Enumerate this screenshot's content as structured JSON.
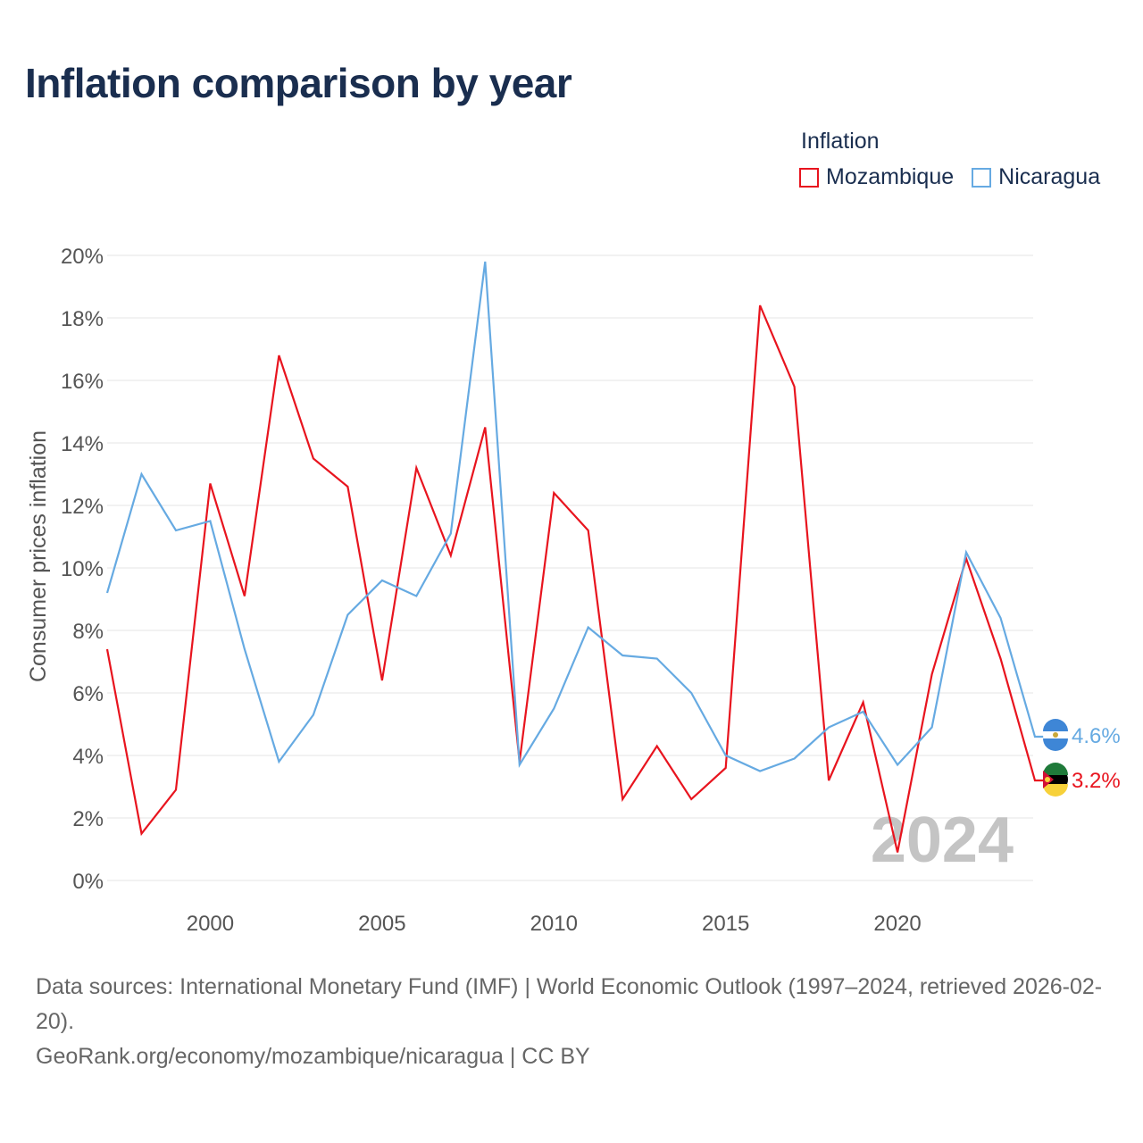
{
  "title": "Inflation comparison by year",
  "legend": {
    "title": "Inflation",
    "items": [
      {
        "label": "Mozambique",
        "color": "#e8141e"
      },
      {
        "label": "Nicaragua",
        "color": "#66aae2"
      }
    ]
  },
  "footer": {
    "sources": "Data sources: International Monetary Fund (IMF) | World Economic Outlook (1997–2024, retrieved 2026-02-20).",
    "link": "GeoRank.org/economy/mozambique/nicaragua | CC BY"
  },
  "chart_data": {
    "type": "line",
    "title": "Inflation comparison by year",
    "ylabel": "Consumer prices inflation",
    "xlabel": "",
    "ylim": [
      0,
      20
    ],
    "xlim": [
      1997,
      2024
    ],
    "y_ticks": [
      "0%",
      "2%",
      "4%",
      "6%",
      "8%",
      "10%",
      "12%",
      "14%",
      "16%",
      "18%",
      "20%"
    ],
    "x_ticks": [
      "2000",
      "2005",
      "2010",
      "2015",
      "2020"
    ],
    "year_label": "2024",
    "x": [
      1997,
      1998,
      1999,
      2000,
      2001,
      2002,
      2003,
      2004,
      2005,
      2006,
      2007,
      2008,
      2009,
      2010,
      2011,
      2012,
      2013,
      2014,
      2015,
      2016,
      2017,
      2018,
      2019,
      2020,
      2021,
      2022,
      2023,
      2024
    ],
    "series": [
      {
        "name": "Mozambique",
        "color": "#e8141e",
        "end_label": "3.2%",
        "values": [
          7.4,
          1.5,
          2.9,
          12.7,
          9.1,
          16.8,
          13.5,
          12.6,
          6.4,
          13.2,
          10.4,
          14.5,
          3.8,
          12.4,
          11.2,
          2.6,
          4.3,
          2.6,
          3.6,
          18.4,
          15.8,
          3.2,
          5.7,
          0.9,
          6.6,
          10.3,
          7.1,
          3.2
        ]
      },
      {
        "name": "Nicaragua",
        "color": "#66aae2",
        "end_label": "4.6%",
        "values": [
          9.2,
          13.0,
          11.2,
          11.5,
          7.4,
          3.8,
          5.3,
          8.5,
          9.6,
          9.1,
          11.1,
          19.8,
          3.7,
          5.5,
          8.1,
          7.2,
          7.1,
          6.0,
          4.0,
          3.5,
          3.9,
          4.9,
          5.4,
          3.7,
          4.9,
          10.5,
          8.4,
          4.6
        ]
      }
    ]
  }
}
